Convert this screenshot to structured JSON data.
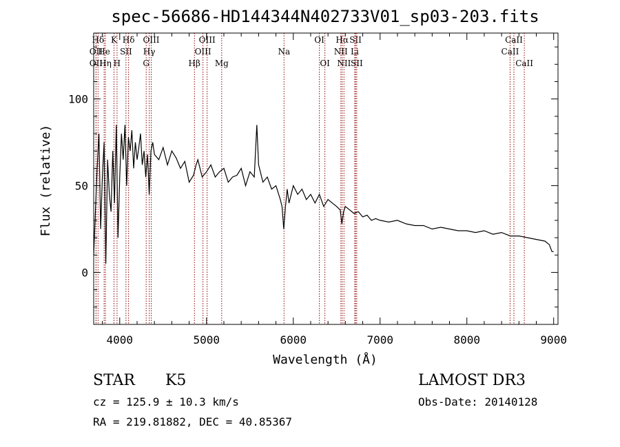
{
  "chart_data": {
    "type": "line",
    "title": "spec-56686-HD144344N402733V01_sp03-203.fits",
    "xlabel": "Wavelength (Å)",
    "ylabel": "Flux (relative)",
    "xlim": [
      3700,
      9050
    ],
    "ylim": [
      -30,
      138
    ],
    "xticks": [
      4000,
      5000,
      6000,
      7000,
      8000,
      9000
    ],
    "xtick_labels": [
      "4000",
      "5000",
      "6000",
      "7000",
      "8000",
      "9000"
    ],
    "yticks": [
      0,
      50,
      100
    ],
    "ytick_labels": [
      "0",
      "50",
      "100"
    ],
    "grid": false,
    "series": [
      {
        "name": "flux",
        "color": "#000000",
        "x": [
          3700,
          3720,
          3740,
          3760,
          3780,
          3800,
          3820,
          3840,
          3860,
          3880,
          3900,
          3920,
          3940,
          3960,
          3980,
          4000,
          4020,
          4040,
          4060,
          4080,
          4100,
          4120,
          4140,
          4160,
          4180,
          4200,
          4220,
          4240,
          4260,
          4280,
          4300,
          4320,
          4340,
          4360,
          4380,
          4400,
          4450,
          4500,
          4550,
          4600,
          4650,
          4700,
          4750,
          4800,
          4850,
          4880,
          4900,
          4950,
          5000,
          5050,
          5100,
          5150,
          5200,
          5250,
          5300,
          5350,
          5400,
          5450,
          5500,
          5550,
          5580,
          5600,
          5650,
          5700,
          5750,
          5800,
          5850,
          5870,
          5890,
          5910,
          5930,
          5950,
          6000,
          6050,
          6100,
          6150,
          6200,
          6250,
          6300,
          6350,
          6400,
          6450,
          6500,
          6540,
          6560,
          6580,
          6600,
          6650,
          6700,
          6750,
          6800,
          6850,
          6900,
          6950,
          7000,
          7100,
          7200,
          7300,
          7400,
          7500,
          7600,
          7700,
          7800,
          7900,
          8000,
          8100,
          8200,
          8300,
          8400,
          8500,
          8600,
          8700,
          8800,
          8900,
          8950,
          8980,
          9000
        ],
        "y": [
          10,
          35,
          60,
          80,
          25,
          55,
          75,
          5,
          65,
          45,
          35,
          70,
          40,
          85,
          20,
          55,
          80,
          65,
          85,
          50,
          78,
          70,
          82,
          60,
          75,
          65,
          72,
          80,
          62,
          70,
          55,
          68,
          45,
          70,
          75,
          68,
          65,
          72,
          62,
          70,
          66,
          60,
          64,
          52,
          56,
          62,
          65,
          55,
          58,
          62,
          55,
          58,
          60,
          52,
          55,
          56,
          60,
          50,
          58,
          55,
          85,
          62,
          52,
          55,
          48,
          50,
          42,
          38,
          25,
          38,
          48,
          40,
          50,
          45,
          48,
          42,
          45,
          40,
          45,
          38,
          42,
          40,
          38,
          36,
          28,
          35,
          38,
          36,
          34,
          35,
          32,
          33,
          30,
          31,
          30,
          29,
          30,
          28,
          27,
          27,
          25,
          26,
          25,
          24,
          24,
          23,
          24,
          22,
          23,
          21,
          21,
          20,
          19,
          18,
          16,
          12,
          12
        ]
      }
    ],
    "lines_top": [
      {
        "label": "Hδ",
        "x": 3750
      },
      {
        "label": "K",
        "x": 3934
      },
      {
        "label": "Hδ",
        "x": 4102
      },
      {
        "label": "OIII",
        "x": 4363
      },
      {
        "label": "OIII",
        "x": 5007
      },
      {
        "label": "OI",
        "x": 6300
      },
      {
        "label": "Hα",
        "x": 6563
      },
      {
        "label": "SII",
        "x": 6717
      },
      {
        "label": "CaII",
        "x": 8542
      }
    ],
    "lines_mid": [
      {
        "label": "OII",
        "x": 3727
      },
      {
        "label": "He",
        "x": 3820
      },
      {
        "label": "SII",
        "x": 4072
      },
      {
        "label": "Hγ",
        "x": 4340
      },
      {
        "label": "OIII",
        "x": 4959
      },
      {
        "label": "Na",
        "x": 5893
      },
      {
        "label": "NII",
        "x": 6548
      },
      {
        "label": "Li",
        "x": 6708
      },
      {
        "label": "CaII",
        "x": 8498
      }
    ],
    "lines_bot": [
      {
        "label": "OII",
        "x": 3727
      },
      {
        "label": "Hη",
        "x": 3835
      },
      {
        "label": "H",
        "x": 3969
      },
      {
        "label": "G",
        "x": 4305
      },
      {
        "label": "Hβ",
        "x": 4861
      },
      {
        "label": "Mg",
        "x": 5175
      },
      {
        "label": "OI",
        "x": 6364
      },
      {
        "label": "NII",
        "x": 6584
      },
      {
        "label": "SII",
        "x": 6731
      },
      {
        "label": "CaII",
        "x": 8662
      }
    ],
    "line_color": "#8b0000"
  },
  "info": {
    "object_class": "STAR",
    "subclass": "K5",
    "survey": "LAMOST DR3",
    "cz": "cz = 125.9 ± 10.3 km/s",
    "obs_date": "Obs-Date: 20140128",
    "coords": "RA = 219.81882, DEC =  40.85367"
  }
}
